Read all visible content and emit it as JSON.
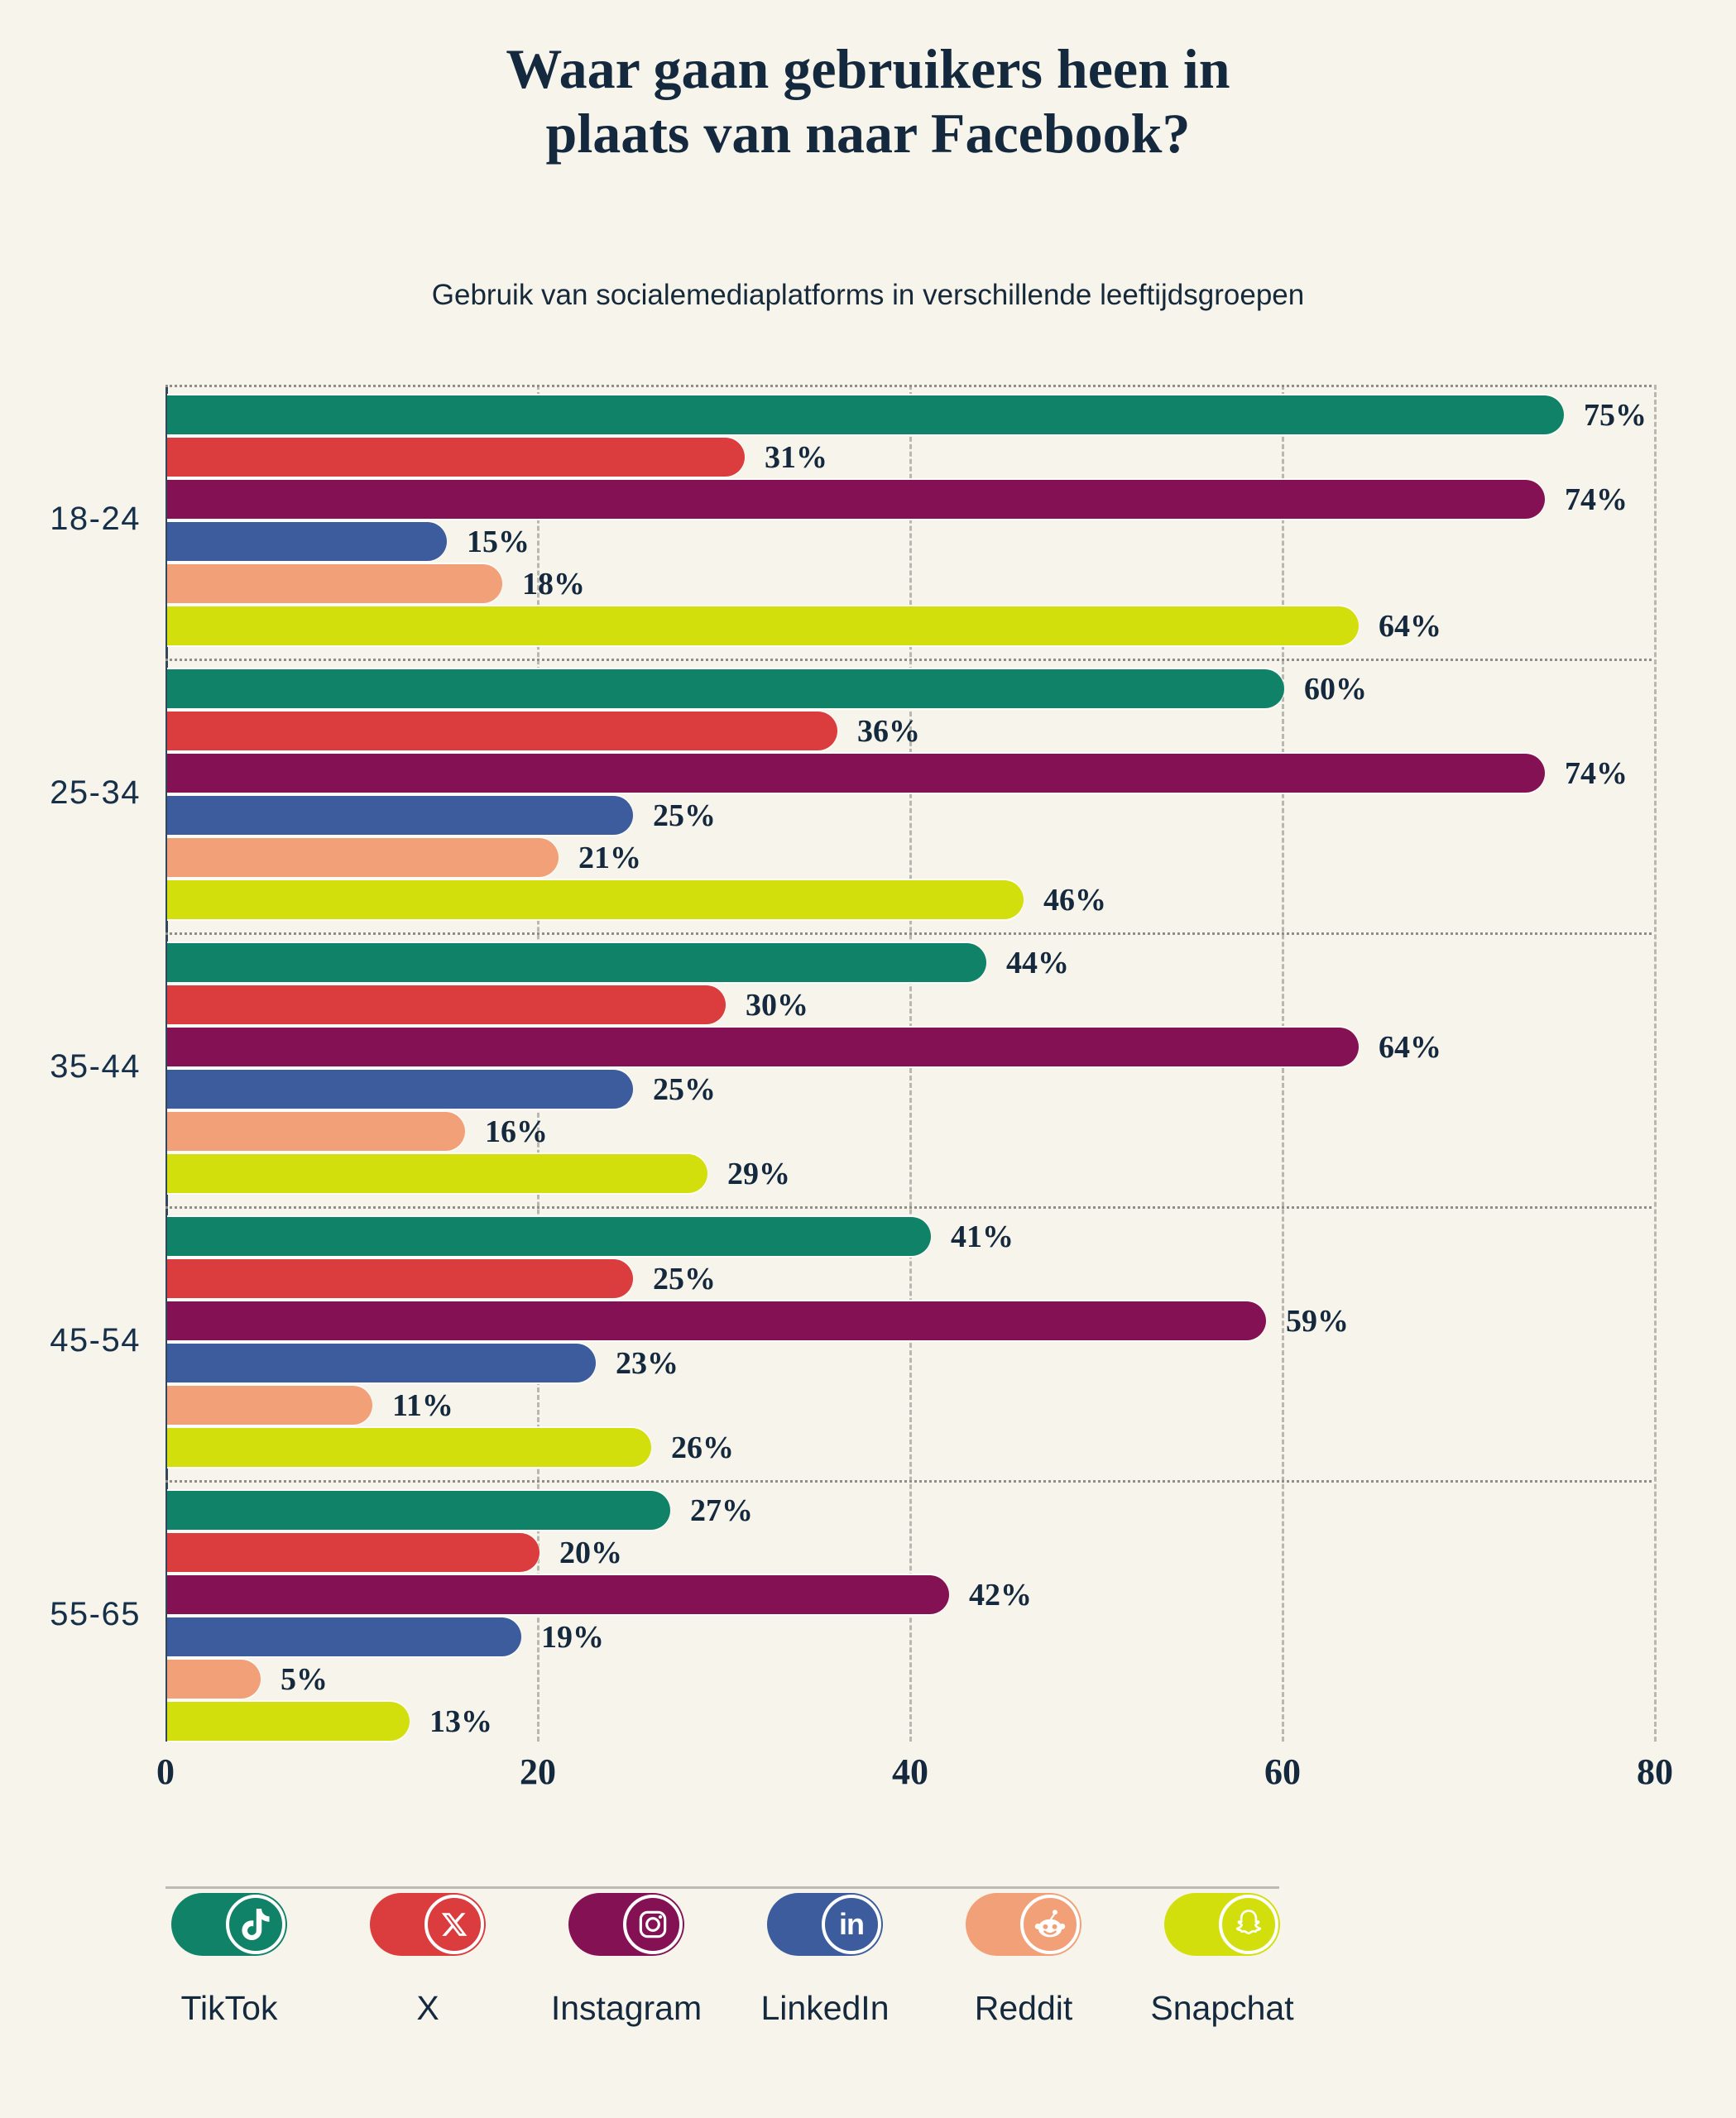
{
  "page": {
    "background": "#F7F4EB",
    "text_color": "#14293D"
  },
  "title": {
    "line1": "Waar gaan gebruikers heen in",
    "line2": "plaats van naar Facebook?"
  },
  "subtitle": "Gebruik van socialemediaplatforms in verschillende leeftijdsgroepen",
  "chart_data": {
    "type": "bar",
    "orientation": "horizontal",
    "title": "Waar gaan gebruikers heen in plaats van naar Facebook?",
    "subtitle": "Gebruik van socialemediaplatforms in verschillende leeftijdsgroepen",
    "categories": [
      "18-24",
      "25-34",
      "35-44",
      "45-54",
      "55-65"
    ],
    "series": [
      {
        "name": "TikTok",
        "color": "#108268",
        "values": [
          75,
          60,
          44,
          41,
          27
        ]
      },
      {
        "name": "X",
        "color": "#DB3C3E",
        "values": [
          31,
          36,
          30,
          25,
          20
        ]
      },
      {
        "name": "Instagram",
        "color": "#841154",
        "values": [
          74,
          74,
          64,
          59,
          42
        ]
      },
      {
        "name": "LinkedIn",
        "color": "#3C5C9D",
        "values": [
          15,
          25,
          25,
          23,
          19
        ]
      },
      {
        "name": "Reddit",
        "color": "#F2A078",
        "values": [
          18,
          21,
          16,
          11,
          5
        ]
      },
      {
        "name": "Snapchat",
        "color": "#D3DF0D",
        "values": [
          64,
          46,
          29,
          26,
          13
        ]
      }
    ],
    "value_suffix": "%",
    "xlim": [
      0,
      80
    ],
    "x_ticks": [
      0,
      20,
      40,
      60,
      80
    ],
    "grid": "vertical-dashed-plus-dotted-group-separators",
    "legend_position": "bottom",
    "legend": [
      "TikTok",
      "X",
      "Instagram",
      "LinkedIn",
      "Reddit",
      "Snapchat"
    ]
  }
}
